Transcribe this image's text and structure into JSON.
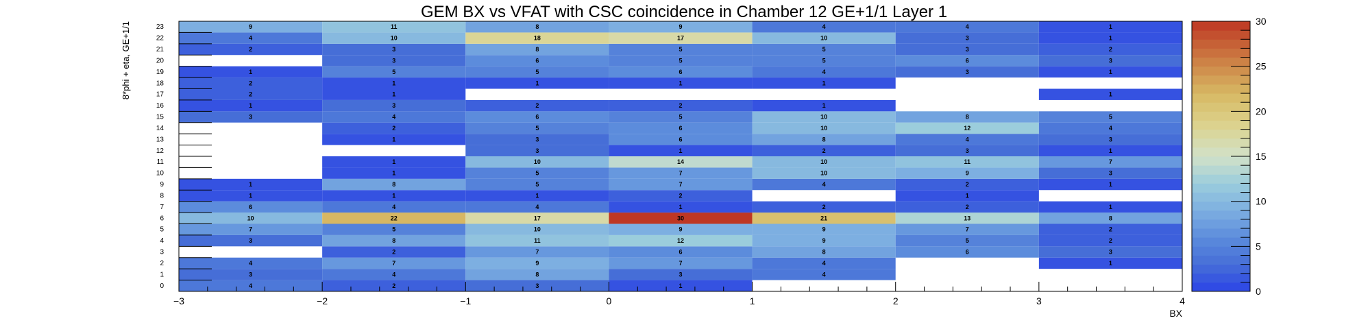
{
  "chart_data": {
    "type": "heatmap",
    "title": "GEM BX vs VFAT with CSC coincidence in Chamber 12 GE+1/1 Layer 1",
    "xlabel": "BX",
    "ylabel": "8*phi + eta, GE+1/1",
    "x_bin_edges": [
      -3,
      -2,
      -1,
      0,
      1,
      2,
      3,
      4
    ],
    "x_ticks": [
      "−3",
      "−2",
      "−1",
      "0",
      "1",
      "2",
      "3",
      "4"
    ],
    "y_bins": [
      "0",
      "1",
      "2",
      "3",
      "4",
      "5",
      "6",
      "7",
      "8",
      "9",
      "10",
      "11",
      "12",
      "13",
      "14",
      "15",
      "16",
      "17",
      "18",
      "19",
      "20",
      "21",
      "22",
      "23"
    ],
    "z_range": [
      0,
      30
    ],
    "z_ticks": [
      "0",
      "5",
      "10",
      "15",
      "20",
      "25",
      "30"
    ],
    "grid": false,
    "colorbar": "right",
    "palette": "blue-to-red",
    "columns_x0_bins": [
      -3,
      -2,
      -1,
      0,
      1,
      2,
      3
    ],
    "values": [
      [
        4,
        2,
        3,
        1,
        null,
        null,
        null
      ],
      [
        3,
        4,
        8,
        3,
        4,
        null,
        null
      ],
      [
        4,
        7,
        9,
        7,
        4,
        null,
        1
      ],
      [
        null,
        2,
        7,
        6,
        8,
        6,
        3
      ],
      [
        3,
        8,
        11,
        12,
        9,
        5,
        2
      ],
      [
        7,
        5,
        10,
        9,
        9,
        7,
        2
      ],
      [
        10,
        22,
        17,
        30,
        21,
        13,
        8
      ],
      [
        6,
        4,
        4,
        1,
        2,
        2,
        1
      ],
      [
        1,
        1,
        1,
        2,
        null,
        1,
        null
      ],
      [
        1,
        8,
        5,
        7,
        4,
        2,
        1
      ],
      [
        null,
        1,
        5,
        7,
        10,
        9,
        3
      ],
      [
        null,
        1,
        10,
        14,
        10,
        11,
        7
      ],
      [
        null,
        null,
        3,
        1,
        2,
        3,
        1
      ],
      [
        null,
        1,
        3,
        6,
        8,
        4,
        3
      ],
      [
        null,
        2,
        5,
        6,
        10,
        12,
        4
      ],
      [
        3,
        4,
        6,
        5,
        10,
        8,
        5
      ],
      [
        1,
        3,
        2,
        2,
        1,
        null,
        null
      ],
      [
        2,
        1,
        null,
        null,
        null,
        null,
        1
      ],
      [
        2,
        1,
        1,
        1,
        1,
        null,
        null
      ],
      [
        1,
        5,
        5,
        6,
        4,
        3,
        1
      ],
      [
        null,
        3,
        6,
        5,
        5,
        6,
        3
      ],
      [
        2,
        3,
        8,
        5,
        5,
        3,
        2
      ],
      [
        4,
        10,
        18,
        17,
        10,
        3,
        1
      ],
      [
        9,
        11,
        8,
        9,
        4,
        4,
        1
      ]
    ]
  }
}
